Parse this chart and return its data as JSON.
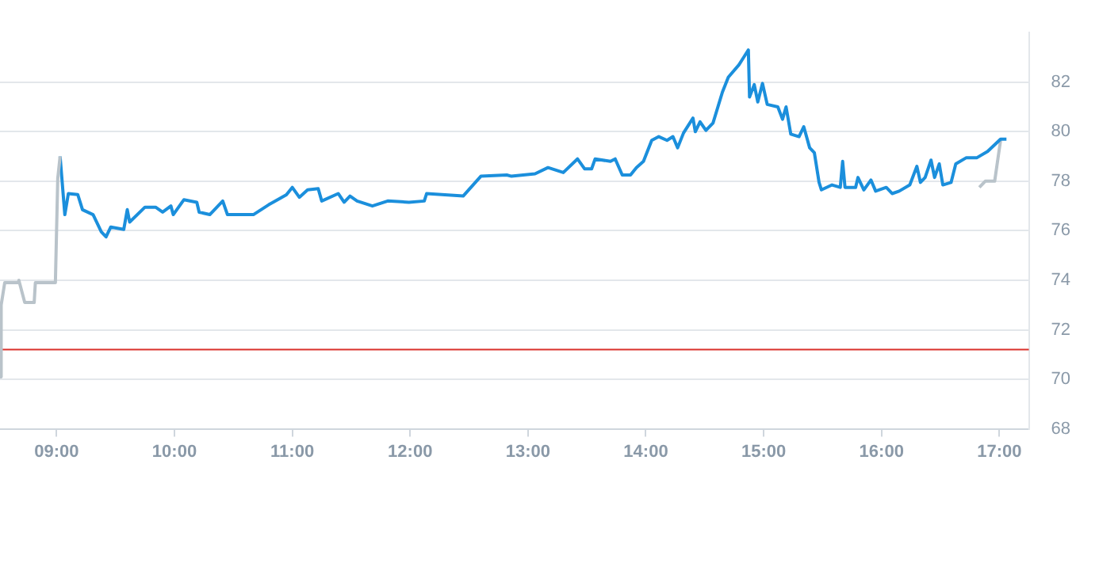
{
  "chart_data": {
    "type": "line",
    "xlim": [
      8.52,
      17.25
    ],
    "xticks": [
      {
        "value": 9,
        "label": "09:00"
      },
      {
        "value": 10,
        "label": "10:00"
      },
      {
        "value": 11,
        "label": "11:00"
      },
      {
        "value": 12,
        "label": "12:00"
      },
      {
        "value": 13,
        "label": "13:00"
      },
      {
        "value": 14,
        "label": "14:00"
      },
      {
        "value": 15,
        "label": "15:00"
      },
      {
        "value": 16,
        "label": "16:00"
      },
      {
        "value": 17,
        "label": "17:00"
      }
    ],
    "ylim": [
      68,
      84
    ],
    "yticks": [
      68,
      70,
      72,
      74,
      76,
      78,
      80,
      82
    ],
    "grid": "y",
    "legend": false,
    "marker": "none",
    "line_style": "solid",
    "ref_lines": [
      {
        "axis": "y",
        "value": 71.2,
        "color": "#d9312b"
      }
    ],
    "series": [
      {
        "color": "#b9c3ca",
        "x": [
          8.52,
          8.53,
          8.56,
          8.67,
          8.68,
          8.73,
          8.81,
          8.82,
          8.99,
          9.01,
          9.03
        ],
        "values": [
          70.1,
          73.0,
          73.9,
          73.9,
          74.0,
          73.1,
          73.1,
          73.9,
          73.9,
          78.1,
          79.0
        ]
      },
      {
        "color": "#1b8fdc",
        "x": [
          9.03,
          9.07,
          9.1,
          9.18,
          9.22,
          9.31,
          9.38,
          9.42,
          9.46,
          9.57,
          9.6,
          9.62,
          9.75,
          9.84,
          9.9,
          9.97,
          9.99,
          10.08,
          10.19,
          10.21,
          10.3,
          10.41,
          10.45,
          10.67,
          10.8,
          10.95,
          11.0,
          11.06,
          11.13,
          11.22,
          11.25,
          11.39,
          11.44,
          11.49,
          11.55,
          11.68,
          11.81,
          11.99,
          12.12,
          12.14,
          12.45,
          12.6,
          12.82,
          12.86,
          13.06,
          13.17,
          13.3,
          13.42,
          13.48,
          13.54,
          13.57,
          13.7,
          13.74,
          13.8,
          13.87,
          13.92,
          13.98,
          14.05,
          14.11,
          14.18,
          14.23,
          14.27,
          14.32,
          14.4,
          14.42,
          14.46,
          14.51,
          14.57,
          14.65,
          14.7,
          14.79,
          14.83,
          14.87,
          14.88,
          14.92,
          14.95,
          14.99,
          15.03,
          15.12,
          15.16,
          15.19,
          15.23,
          15.3,
          15.34,
          15.39,
          15.43,
          15.47,
          15.49,
          15.58,
          15.65,
          15.67,
          15.69,
          15.78,
          15.8,
          15.85,
          15.91,
          15.95,
          16.04,
          16.09,
          16.15,
          16.24,
          16.3,
          16.33,
          16.37,
          16.42,
          16.45,
          16.49,
          16.52,
          16.59,
          16.63,
          16.72,
          16.81,
          16.9,
          17.01,
          17.06
        ],
        "values": [
          79.0,
          76.65,
          77.5,
          77.46,
          76.85,
          76.65,
          75.95,
          75.75,
          76.15,
          76.05,
          76.85,
          76.35,
          76.95,
          76.95,
          76.75,
          77.0,
          76.65,
          77.25,
          77.15,
          76.75,
          76.65,
          77.2,
          76.65,
          76.65,
          77.05,
          77.45,
          77.75,
          77.35,
          77.65,
          77.7,
          77.2,
          77.5,
          77.15,
          77.4,
          77.2,
          77.0,
          77.2,
          77.15,
          77.2,
          77.5,
          77.4,
          78.2,
          78.25,
          78.2,
          78.3,
          78.55,
          78.35,
          78.9,
          78.5,
          78.5,
          78.9,
          78.8,
          78.9,
          78.25,
          78.25,
          78.55,
          78.8,
          79.65,
          79.8,
          79.65,
          79.8,
          79.35,
          79.95,
          80.55,
          80.0,
          80.4,
          80.05,
          80.35,
          81.6,
          82.2,
          82.7,
          83.0,
          83.3,
          81.4,
          81.9,
          81.2,
          81.95,
          81.1,
          81.0,
          80.5,
          81.0,
          79.9,
          79.8,
          80.2,
          79.35,
          79.15,
          77.95,
          77.65,
          77.85,
          77.75,
          78.8,
          77.75,
          77.75,
          78.15,
          77.65,
          78.05,
          77.6,
          77.75,
          77.5,
          77.6,
          77.85,
          78.6,
          77.95,
          78.15,
          78.85,
          78.15,
          78.7,
          77.85,
          77.95,
          78.7,
          78.95,
          78.95,
          79.2,
          79.7,
          79.7
        ]
      },
      {
        "color": "#b9c3ca",
        "x": [
          16.83,
          16.88,
          16.96,
          17.01
        ],
        "values": [
          77.75,
          78.0,
          78.0,
          79.65
        ]
      }
    ]
  }
}
